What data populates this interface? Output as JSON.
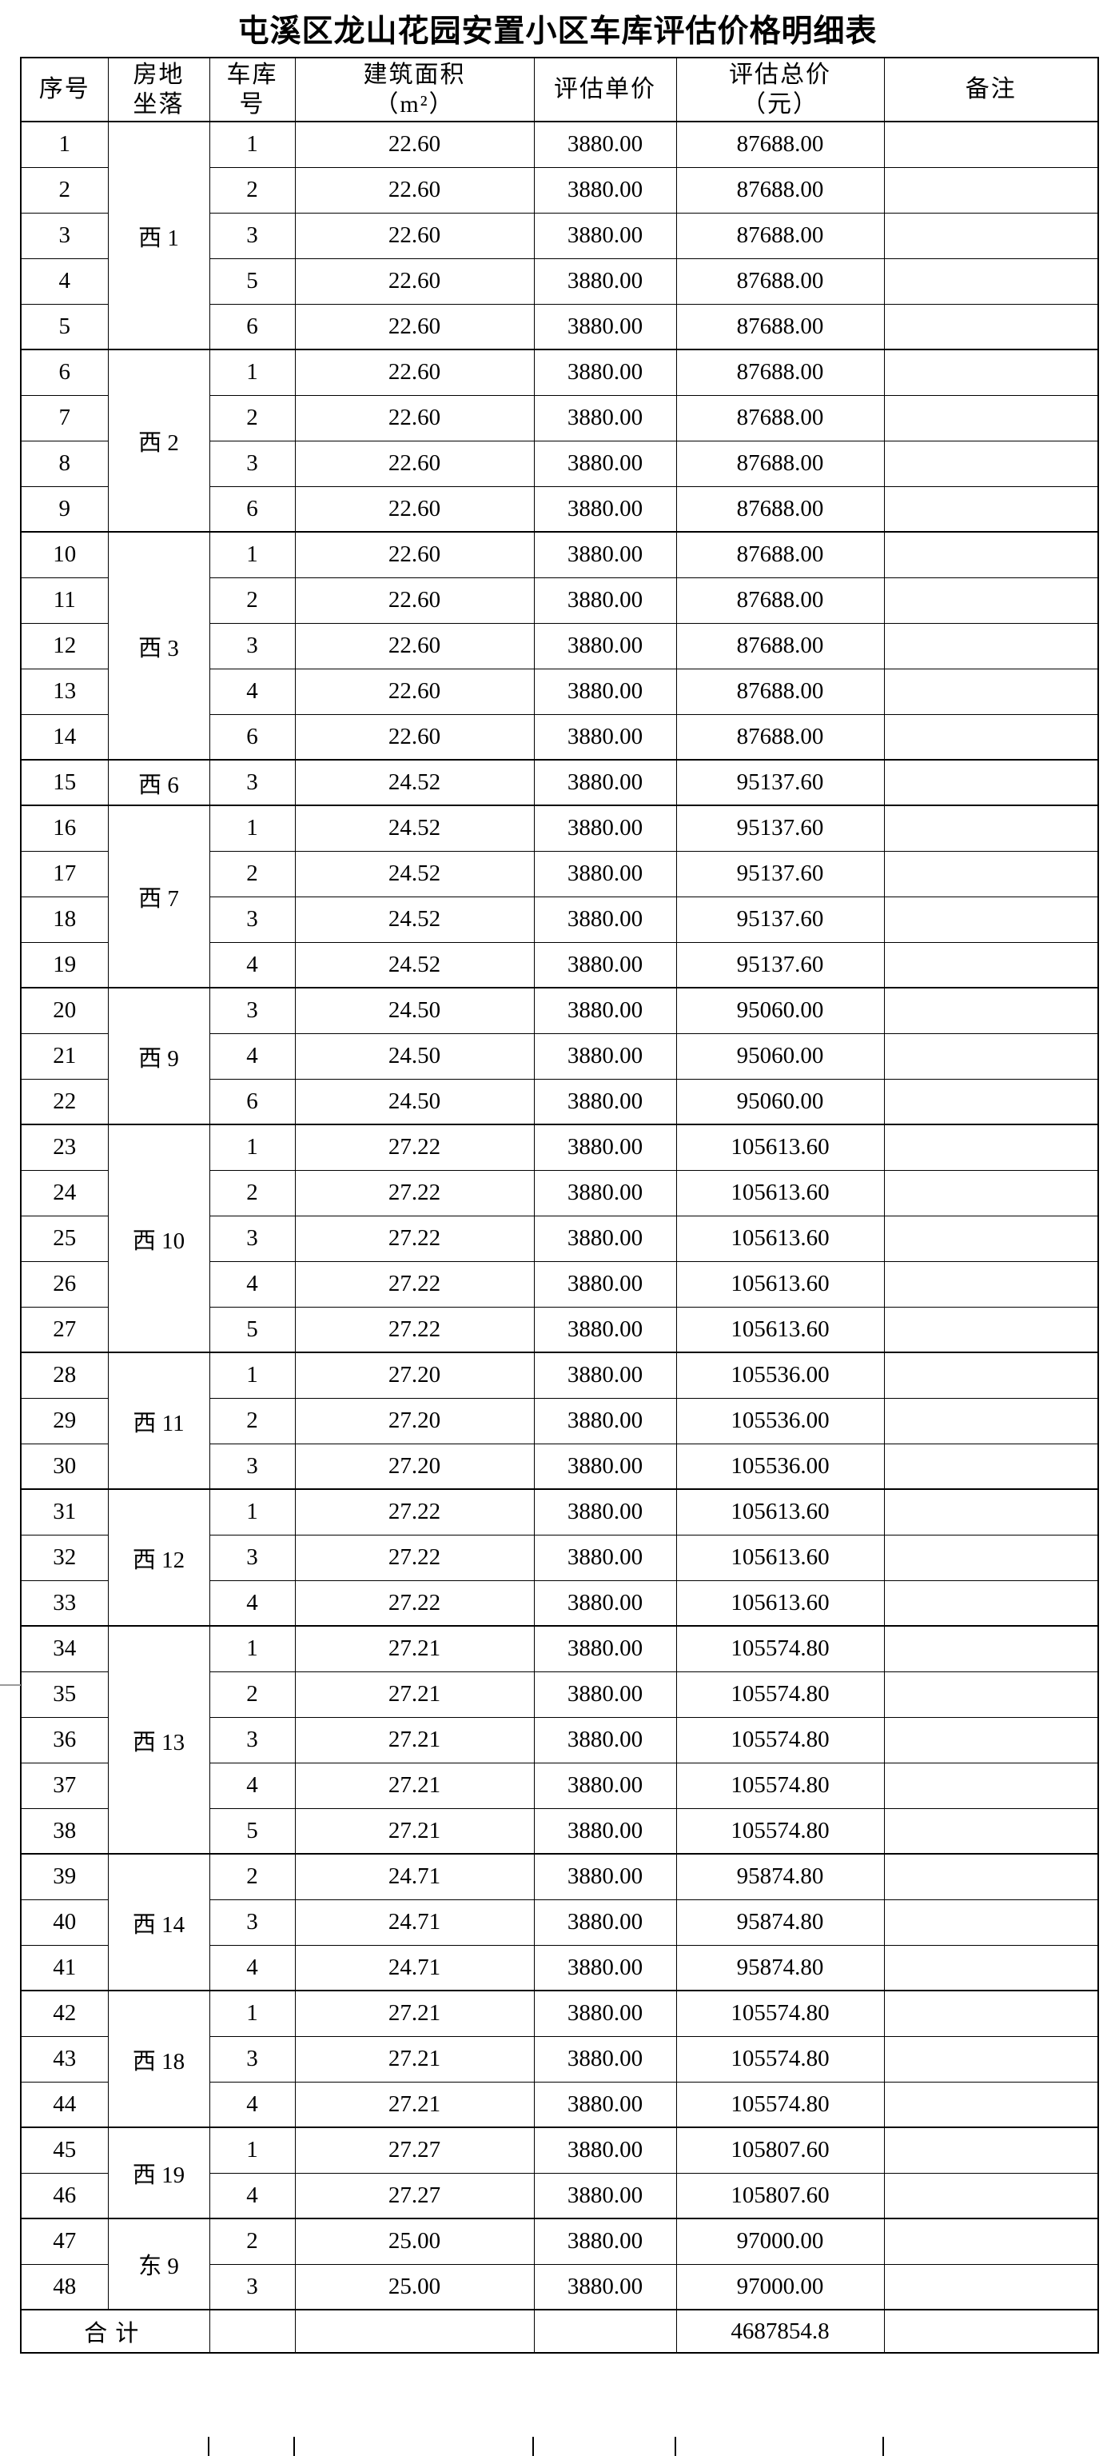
{
  "page": {
    "title": "屯溪区龙山花园安置小区车库评估价格明细表"
  },
  "table": {
    "headers": {
      "seq": "序号",
      "location": "房地\n坐落",
      "garage_no": "车库\n号",
      "area": "建筑面积\n（m²）",
      "unit_price": "评估单价",
      "total_price": "评估总价\n（元）",
      "remark": "备注"
    },
    "groups": [
      {
        "location": "西 1",
        "rows": [
          {
            "seq": "1",
            "garage_no": "1",
            "area": "22.60",
            "unit_price": "3880.00",
            "total_price": "87688.00",
            "remark": ""
          },
          {
            "seq": "2",
            "garage_no": "2",
            "area": "22.60",
            "unit_price": "3880.00",
            "total_price": "87688.00",
            "remark": ""
          },
          {
            "seq": "3",
            "garage_no": "3",
            "area": "22.60",
            "unit_price": "3880.00",
            "total_price": "87688.00",
            "remark": ""
          },
          {
            "seq": "4",
            "garage_no": "5",
            "area": "22.60",
            "unit_price": "3880.00",
            "total_price": "87688.00",
            "remark": ""
          },
          {
            "seq": "5",
            "garage_no": "6",
            "area": "22.60",
            "unit_price": "3880.00",
            "total_price": "87688.00",
            "remark": ""
          }
        ]
      },
      {
        "location": "西 2",
        "rows": [
          {
            "seq": "6",
            "garage_no": "1",
            "area": "22.60",
            "unit_price": "3880.00",
            "total_price": "87688.00",
            "remark": ""
          },
          {
            "seq": "7",
            "garage_no": "2",
            "area": "22.60",
            "unit_price": "3880.00",
            "total_price": "87688.00",
            "remark": ""
          },
          {
            "seq": "8",
            "garage_no": "3",
            "area": "22.60",
            "unit_price": "3880.00",
            "total_price": "87688.00",
            "remark": ""
          },
          {
            "seq": "9",
            "garage_no": "6",
            "area": "22.60",
            "unit_price": "3880.00",
            "total_price": "87688.00",
            "remark": ""
          }
        ]
      },
      {
        "location": "西 3",
        "rows": [
          {
            "seq": "10",
            "garage_no": "1",
            "area": "22.60",
            "unit_price": "3880.00",
            "total_price": "87688.00",
            "remark": ""
          },
          {
            "seq": "11",
            "garage_no": "2",
            "area": "22.60",
            "unit_price": "3880.00",
            "total_price": "87688.00",
            "remark": ""
          },
          {
            "seq": "12",
            "garage_no": "3",
            "area": "22.60",
            "unit_price": "3880.00",
            "total_price": "87688.00",
            "remark": ""
          },
          {
            "seq": "13",
            "garage_no": "4",
            "area": "22.60",
            "unit_price": "3880.00",
            "total_price": "87688.00",
            "remark": ""
          },
          {
            "seq": "14",
            "garage_no": "6",
            "area": "22.60",
            "unit_price": "3880.00",
            "total_price": "87688.00",
            "remark": ""
          }
        ]
      },
      {
        "location": "西 6",
        "rows": [
          {
            "seq": "15",
            "garage_no": "3",
            "area": "24.52",
            "unit_price": "3880.00",
            "total_price": "95137.60",
            "remark": ""
          }
        ]
      },
      {
        "location": "西 7",
        "rows": [
          {
            "seq": "16",
            "garage_no": "1",
            "area": "24.52",
            "unit_price": "3880.00",
            "total_price": "95137.60",
            "remark": ""
          },
          {
            "seq": "17",
            "garage_no": "2",
            "area": "24.52",
            "unit_price": "3880.00",
            "total_price": "95137.60",
            "remark": ""
          },
          {
            "seq": "18",
            "garage_no": "3",
            "area": "24.52",
            "unit_price": "3880.00",
            "total_price": "95137.60",
            "remark": ""
          },
          {
            "seq": "19",
            "garage_no": "4",
            "area": "24.52",
            "unit_price": "3880.00",
            "total_price": "95137.60",
            "remark": ""
          }
        ]
      },
      {
        "location": "西 9",
        "rows": [
          {
            "seq": "20",
            "garage_no": "3",
            "area": "24.50",
            "unit_price": "3880.00",
            "total_price": "95060.00",
            "remark": ""
          },
          {
            "seq": "21",
            "garage_no": "4",
            "area": "24.50",
            "unit_price": "3880.00",
            "total_price": "95060.00",
            "remark": ""
          },
          {
            "seq": "22",
            "garage_no": "6",
            "area": "24.50",
            "unit_price": "3880.00",
            "total_price": "95060.00",
            "remark": ""
          }
        ]
      },
      {
        "location": "西 10",
        "rows": [
          {
            "seq": "23",
            "garage_no": "1",
            "area": "27.22",
            "unit_price": "3880.00",
            "total_price": "105613.60",
            "remark": ""
          },
          {
            "seq": "24",
            "garage_no": "2",
            "area": "27.22",
            "unit_price": "3880.00",
            "total_price": "105613.60",
            "remark": ""
          },
          {
            "seq": "25",
            "garage_no": "3",
            "area": "27.22",
            "unit_price": "3880.00",
            "total_price": "105613.60",
            "remark": ""
          },
          {
            "seq": "26",
            "garage_no": "4",
            "area": "27.22",
            "unit_price": "3880.00",
            "total_price": "105613.60",
            "remark": ""
          },
          {
            "seq": "27",
            "garage_no": "5",
            "area": "27.22",
            "unit_price": "3880.00",
            "total_price": "105613.60",
            "remark": ""
          }
        ]
      },
      {
        "location": "西 11",
        "rows": [
          {
            "seq": "28",
            "garage_no": "1",
            "area": "27.20",
            "unit_price": "3880.00",
            "total_price": "105536.00",
            "remark": ""
          },
          {
            "seq": "29",
            "garage_no": "2",
            "area": "27.20",
            "unit_price": "3880.00",
            "total_price": "105536.00",
            "remark": ""
          },
          {
            "seq": "30",
            "garage_no": "3",
            "area": "27.20",
            "unit_price": "3880.00",
            "total_price": "105536.00",
            "remark": ""
          }
        ]
      },
      {
        "location": "西 12",
        "rows": [
          {
            "seq": "31",
            "garage_no": "1",
            "area": "27.22",
            "unit_price": "3880.00",
            "total_price": "105613.60",
            "remark": ""
          },
          {
            "seq": "32",
            "garage_no": "3",
            "area": "27.22",
            "unit_price": "3880.00",
            "total_price": "105613.60",
            "remark": ""
          },
          {
            "seq": "33",
            "garage_no": "4",
            "area": "27.22",
            "unit_price": "3880.00",
            "total_price": "105613.60",
            "remark": ""
          }
        ]
      },
      {
        "location": "西 13",
        "rows": [
          {
            "seq": "34",
            "garage_no": "1",
            "area": "27.21",
            "unit_price": "3880.00",
            "total_price": "105574.80",
            "remark": ""
          },
          {
            "seq": "35",
            "garage_no": "2",
            "area": "27.21",
            "unit_price": "3880.00",
            "total_price": "105574.80",
            "remark": ""
          },
          {
            "seq": "36",
            "garage_no": "3",
            "area": "27.21",
            "unit_price": "3880.00",
            "total_price": "105574.80",
            "remark": ""
          },
          {
            "seq": "37",
            "garage_no": "4",
            "area": "27.21",
            "unit_price": "3880.00",
            "total_price": "105574.80",
            "remark": ""
          },
          {
            "seq": "38",
            "garage_no": "5",
            "area": "27.21",
            "unit_price": "3880.00",
            "total_price": "105574.80",
            "remark": ""
          }
        ]
      },
      {
        "location": "西 14",
        "rows": [
          {
            "seq": "39",
            "garage_no": "2",
            "area": "24.71",
            "unit_price": "3880.00",
            "total_price": "95874.80",
            "remark": ""
          },
          {
            "seq": "40",
            "garage_no": "3",
            "area": "24.71",
            "unit_price": "3880.00",
            "total_price": "95874.80",
            "remark": ""
          },
          {
            "seq": "41",
            "garage_no": "4",
            "area": "24.71",
            "unit_price": "3880.00",
            "total_price": "95874.80",
            "remark": ""
          }
        ]
      },
      {
        "location": "西 18",
        "rows": [
          {
            "seq": "42",
            "garage_no": "1",
            "area": "27.21",
            "unit_price": "3880.00",
            "total_price": "105574.80",
            "remark": ""
          },
          {
            "seq": "43",
            "garage_no": "3",
            "area": "27.21",
            "unit_price": "3880.00",
            "total_price": "105574.80",
            "remark": ""
          },
          {
            "seq": "44",
            "garage_no": "4",
            "area": "27.21",
            "unit_price": "3880.00",
            "total_price": "105574.80",
            "remark": ""
          }
        ]
      },
      {
        "location": "西 19",
        "rows": [
          {
            "seq": "45",
            "garage_no": "1",
            "area": "27.27",
            "unit_price": "3880.00",
            "total_price": "105807.60",
            "remark": ""
          },
          {
            "seq": "46",
            "garage_no": "4",
            "area": "27.27",
            "unit_price": "3880.00",
            "total_price": "105807.60",
            "remark": ""
          }
        ]
      },
      {
        "location": "东 9",
        "rows": [
          {
            "seq": "47",
            "garage_no": "2",
            "area": "25.00",
            "unit_price": "3880.00",
            "total_price": "97000.00",
            "remark": ""
          },
          {
            "seq": "48",
            "garage_no": "3",
            "area": "25.00",
            "unit_price": "3880.00",
            "total_price": "97000.00",
            "remark": ""
          }
        ]
      }
    ],
    "footer": {
      "label": "合计",
      "garage_no": "",
      "area": "",
      "unit_price": "",
      "total_price": "4687854.8",
      "remark": ""
    }
  }
}
